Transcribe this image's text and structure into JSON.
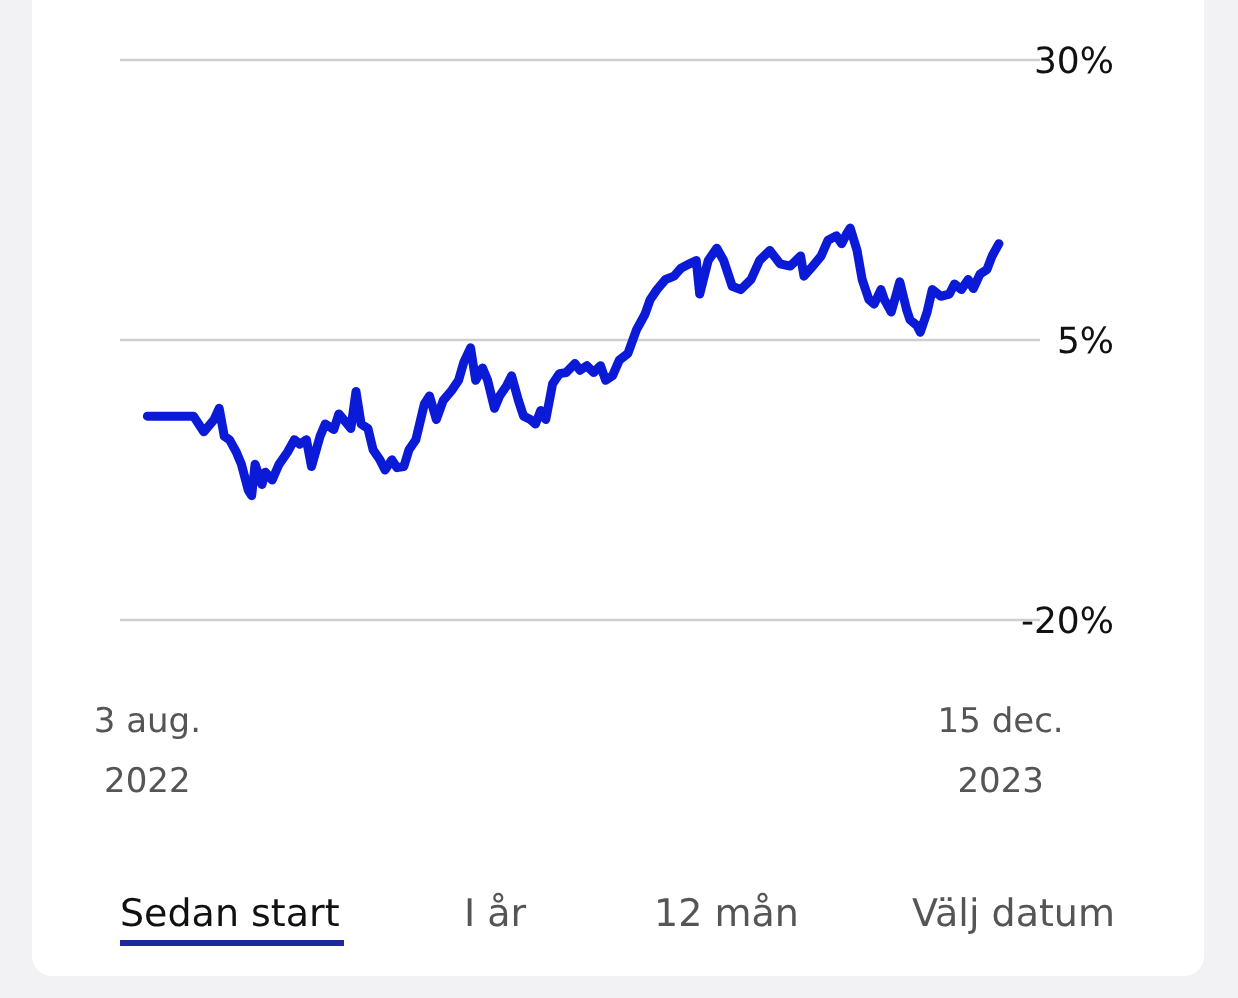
{
  "chart_data": {
    "type": "line",
    "x": [
      "2022-08-03",
      "2022-08-30",
      "2022-09-02",
      "2022-09-05",
      "2022-09-11",
      "2022-09-14",
      "2022-09-17",
      "2022-09-20",
      "2022-09-24",
      "2022-09-27",
      "2022-10-01",
      "2022-10-03",
      "2022-10-05",
      "2022-10-09",
      "2022-10-11",
      "2022-10-15",
      "2022-10-19",
      "2022-10-24",
      "2022-10-28",
      "2022-10-31",
      "2022-11-04",
      "2022-11-07",
      "2022-11-12",
      "2022-11-15",
      "2022-11-20",
      "2022-11-23",
      "2022-11-30",
      "2022-12-03",
      "2022-12-06",
      "2022-12-10",
      "2022-12-13",
      "2022-12-17",
      "2022-12-20",
      "2022-12-24",
      "2022-12-27",
      "2022-12-31",
      "2023-01-03",
      "2023-01-07",
      "2023-01-12",
      "2023-01-15",
      "2023-01-19",
      "2023-01-23",
      "2023-01-28",
      "2023-02-01",
      "2023-02-04",
      "2023-02-08",
      "2023-02-11",
      "2023-02-15",
      "2023-02-18",
      "2023-02-22",
      "2023-02-25",
      "2023-03-01",
      "2023-03-04",
      "2023-03-08",
      "2023-03-11",
      "2023-03-15",
      "2023-03-18",
      "2023-03-21",
      "2023-03-24",
      "2023-03-28",
      "2023-04-01",
      "2023-04-05",
      "2023-04-10",
      "2023-04-13",
      "2023-04-17",
      "2023-04-21",
      "2023-04-25",
      "2023-04-28",
      "2023-05-02",
      "2023-05-06",
      "2023-05-11",
      "2023-05-16",
      "2023-05-21",
      "2023-05-24",
      "2023-05-28",
      "2023-06-02",
      "2023-06-07",
      "2023-06-11",
      "2023-06-16",
      "2023-06-20",
      "2023-06-22",
      "2023-06-27",
      "2023-07-02",
      "2023-07-06",
      "2023-07-11",
      "2023-07-16",
      "2023-07-22",
      "2023-07-27",
      "2023-08-02",
      "2023-08-08",
      "2023-08-14",
      "2023-08-20",
      "2023-08-22",
      "2023-08-26",
      "2023-09-01",
      "2023-09-05",
      "2023-09-10",
      "2023-09-13",
      "2023-09-16",
      "2023-09-18",
      "2023-09-22",
      "2023-09-25",
      "2023-09-29",
      "2023-10-02",
      "2023-10-06",
      "2023-10-08",
      "2023-10-12",
      "2023-10-15",
      "2023-10-17",
      "2023-10-21",
      "2023-10-23",
      "2023-10-27",
      "2023-10-29",
      "2023-11-02",
      "2023-11-05",
      "2023-11-10",
      "2023-11-15",
      "2023-11-18",
      "2023-11-22",
      "2023-11-26",
      "2023-11-29",
      "2023-12-03",
      "2023-12-07",
      "2023-12-10",
      "2023-12-14"
    ],
    "series": [
      {
        "color": "#0a1ad6",
        "values": [
          -1.8,
          -1.8,
          -2.5,
          -3.2,
          -2.1,
          -1.1,
          -3.6,
          -3.9,
          -5.0,
          -6.1,
          -8.4,
          -8.9,
          -6.1,
          -7.9,
          -6.8,
          -7.5,
          -6.1,
          -5.0,
          -3.9,
          -4.3,
          -3.9,
          -6.3,
          -3.6,
          -2.5,
          -3.0,
          -1.6,
          -2.9,
          0.4,
          -2.5,
          -2.9,
          -4.8,
          -5.7,
          -6.6,
          -5.7,
          -6.4,
          -6.3,
          -4.8,
          -3.9,
          -0.7,
          0.0,
          -2.1,
          -0.4,
          0.5,
          1.4,
          3.0,
          4.3,
          1.4,
          2.5,
          1.4,
          -1.1,
          0.0,
          0.9,
          1.8,
          -0.4,
          -1.8,
          -2.1,
          -2.5,
          -1.3,
          -2.1,
          1.1,
          2.0,
          2.1,
          2.9,
          2.3,
          2.7,
          2.1,
          2.7,
          1.4,
          1.8,
          3.2,
          3.8,
          5.9,
          7.3,
          8.6,
          9.5,
          10.4,
          10.7,
          11.4,
          11.8,
          12.1,
          9.1,
          12.1,
          13.2,
          12.1,
          9.8,
          9.5,
          10.4,
          12.1,
          13.0,
          11.8,
          11.6,
          12.5,
          10.7,
          11.4,
          12.5,
          13.9,
          14.3,
          13.6,
          14.5,
          15.0,
          13.0,
          10.4,
          8.6,
          8.2,
          9.5,
          8.6,
          7.5,
          9.1,
          10.2,
          7.7,
          6.8,
          6.3,
          5.7,
          7.5,
          9.5,
          8.9,
          9.1,
          10.0,
          9.5,
          10.4,
          9.6,
          10.9,
          11.3,
          12.5,
          13.6
        ]
      }
    ],
    "xlim": [
      "2022-07-18",
      "2024-01-07"
    ],
    "xticks": [
      {
        "value": "2022-08-03",
        "label": "3 aug.\n2022"
      },
      {
        "value": "2023-12-15",
        "label": "15 dec.\n2023"
      }
    ],
    "ylim": [
      -20,
      30
    ],
    "yticks": [
      {
        "value": -20,
        "label": "-20%"
      },
      {
        "value": 5,
        "label": "5%"
      },
      {
        "value": 30,
        "label": "30%"
      }
    ],
    "grid": "y",
    "line_style": "solid",
    "annotations": [
      "Sedan start",
      "I år",
      "12 mån",
      "Välj datum"
    ]
  }
}
